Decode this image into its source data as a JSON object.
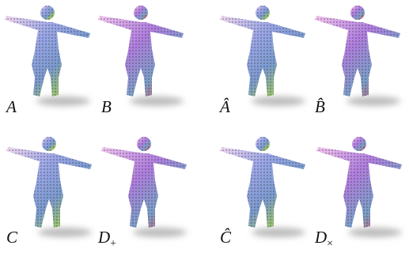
{
  "panels": [
    {
      "label": "A"
    },
    {
      "label": "B"
    },
    {
      "label": "Â"
    },
    {
      "label": "B̂"
    },
    {
      "label": "C"
    },
    {
      "label": {
        "base": "D",
        "sub": "+"
      }
    },
    {
      "label": "Ĉ"
    },
    {
      "label": {
        "base": "D",
        "sub": "×"
      }
    }
  ]
}
